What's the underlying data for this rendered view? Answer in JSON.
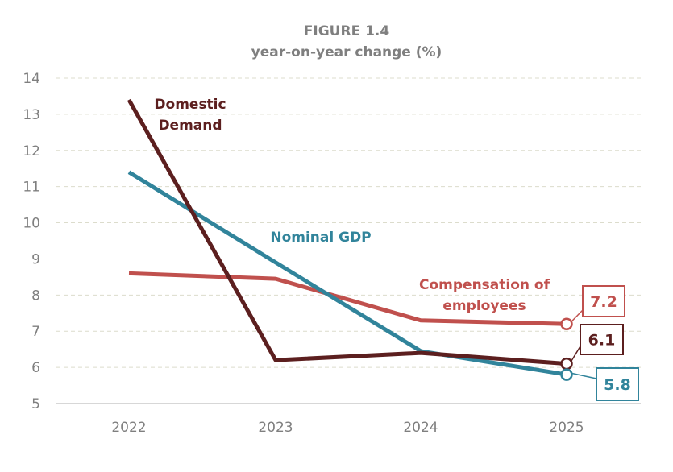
{
  "chart_data": {
    "type": "line",
    "title": "FIGURE 1.4",
    "subtitle": "year-on-year change (%)",
    "categories": [
      "2022",
      "2023",
      "2024",
      "2025"
    ],
    "ylim": [
      5,
      14
    ],
    "yticks": [
      5,
      6,
      7,
      8,
      9,
      10,
      11,
      12,
      13,
      14
    ],
    "grid": true,
    "series": [
      {
        "name": "Domestic Demand",
        "label_lines": [
          "Domestic",
          "Demand"
        ],
        "color": "#5c1f1f",
        "values": [
          13.4,
          6.2,
          6.4,
          6.1
        ],
        "end_label": "6.1"
      },
      {
        "name": "Nominal GDP",
        "label_lines": [
          "Nominal GDP"
        ],
        "color": "#31849b",
        "values": [
          11.4,
          8.9,
          6.45,
          5.8
        ],
        "end_label": "5.8"
      },
      {
        "name": "Compensation of employees",
        "label_lines": [
          "Compensation of",
          "employees"
        ],
        "color": "#c0504d",
        "values": [
          8.6,
          8.45,
          7.3,
          7.2
        ],
        "end_label": "7.2"
      }
    ]
  }
}
